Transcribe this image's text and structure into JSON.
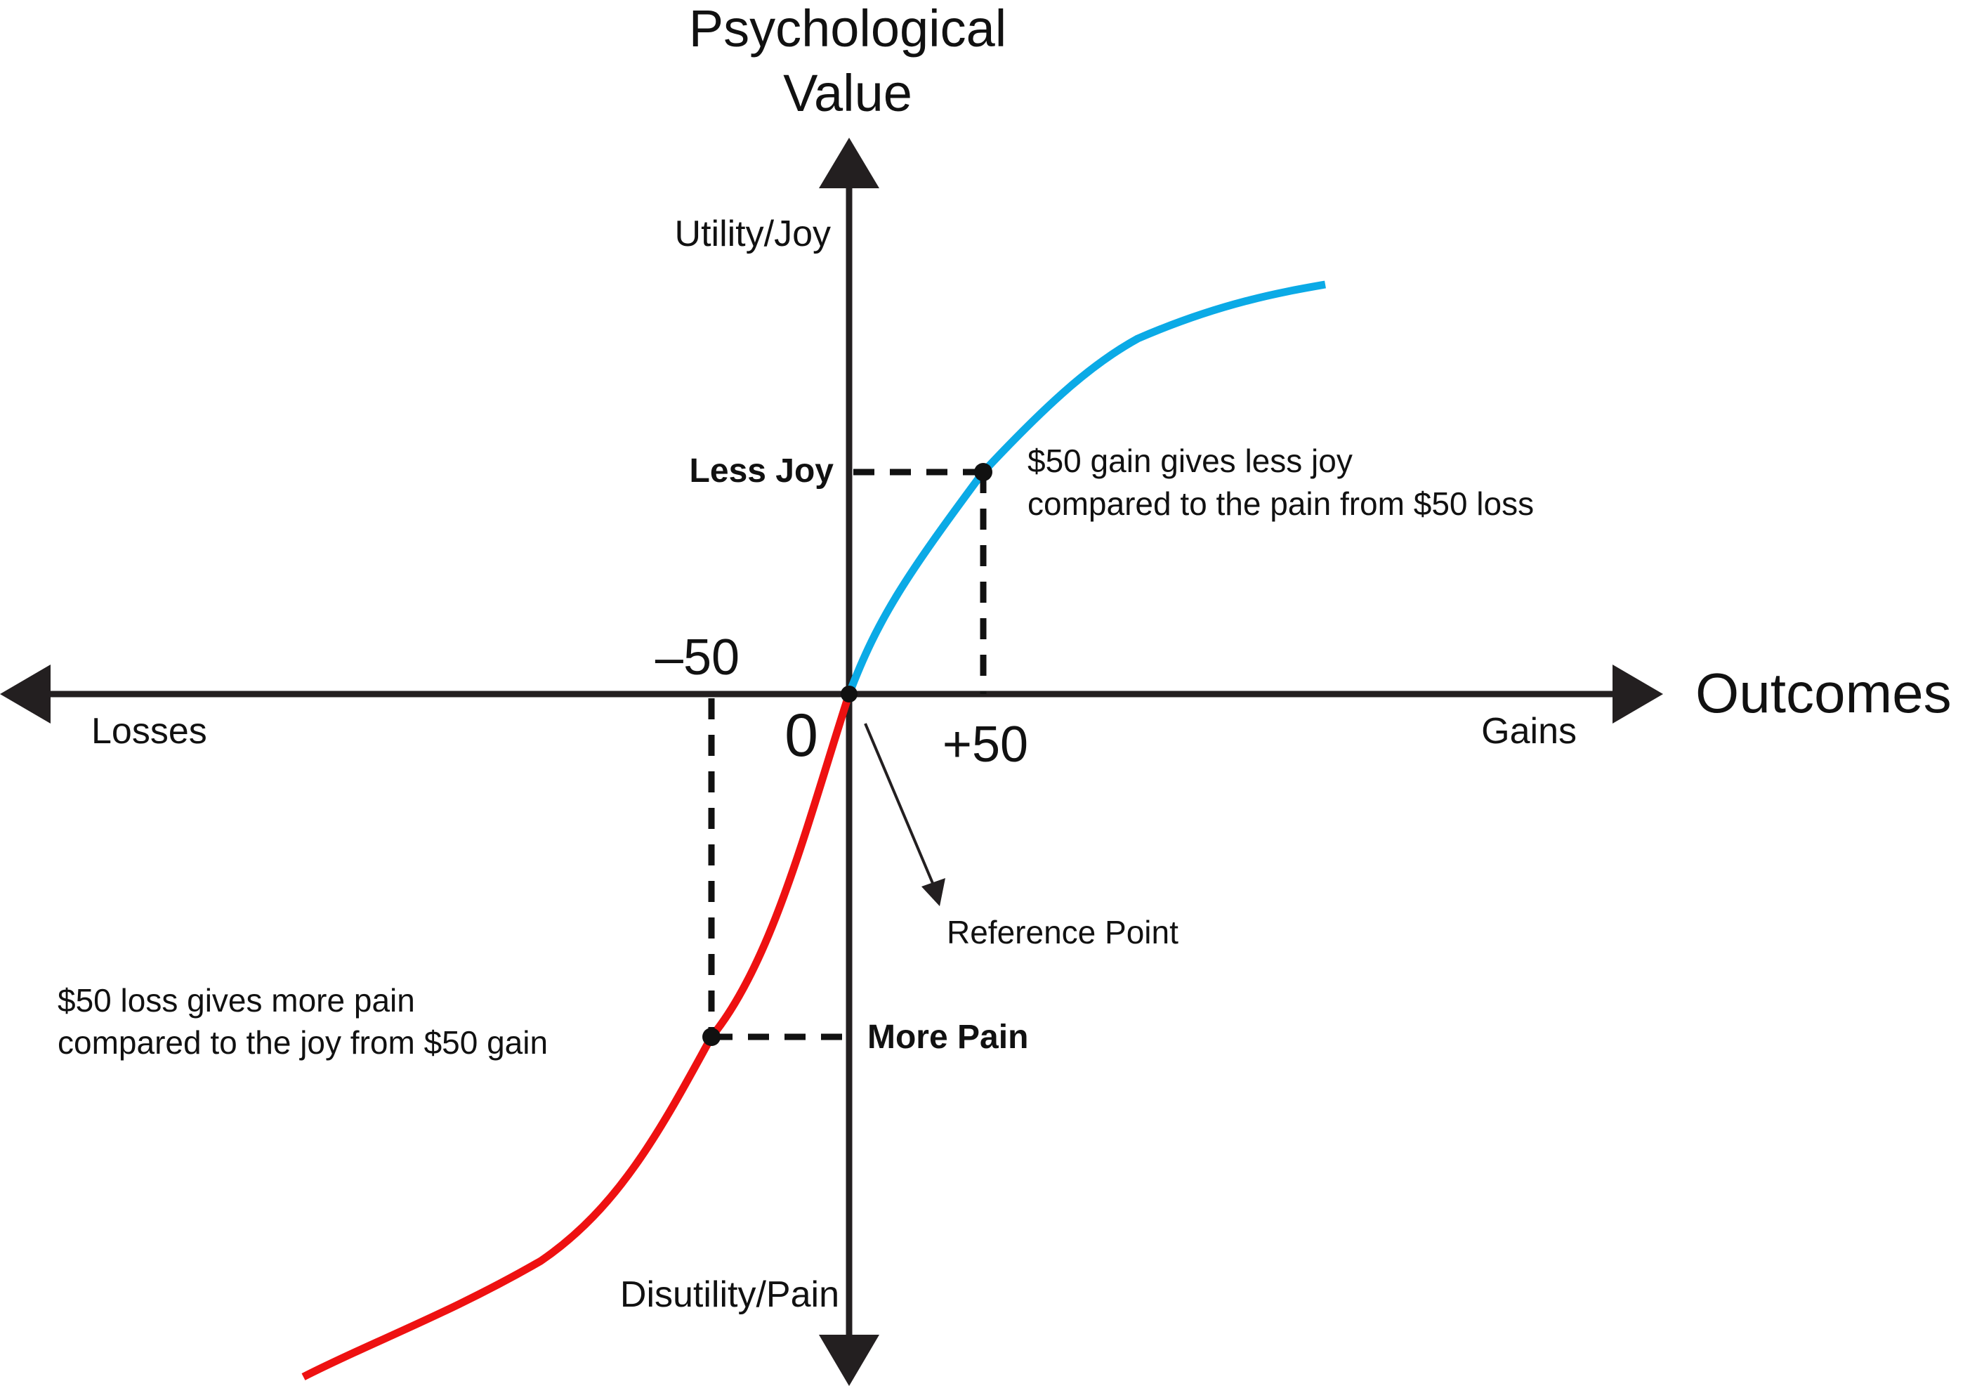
{
  "title": {
    "line1": "Psychological",
    "line2": "Value"
  },
  "x_axis": {
    "label": "Outcomes",
    "left_label": "Losses",
    "right_label": "Gains"
  },
  "y_axis": {
    "top_label": "Utility/Joy",
    "bottom_label": "Disutility/Pain"
  },
  "ticks": {
    "origin": "0",
    "negative": "–50",
    "positive": "+50"
  },
  "markers": {
    "less_joy": "Less Joy",
    "more_pain": "More Pain"
  },
  "annotations": {
    "gain_line1": "$50 gain gives less joy",
    "gain_line2": "compared to the pain from $50 loss",
    "loss_line1": "$50 loss gives more pain",
    "loss_line2": "compared to the joy from $50 gain",
    "reference": "Reference Point"
  },
  "colors": {
    "gains_curve": "#0BAAE6",
    "losses_curve": "#EE1111",
    "axes": "#231F20"
  }
}
